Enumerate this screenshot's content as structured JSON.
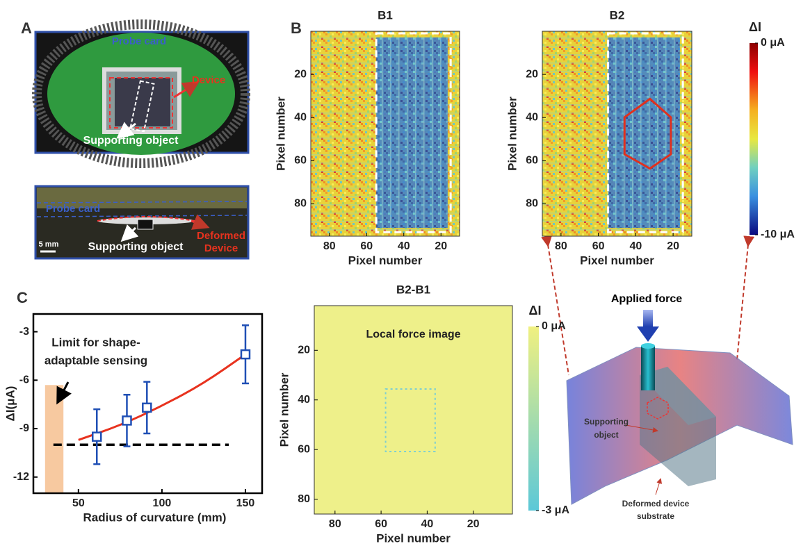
{
  "panels": {
    "labels": [
      "A",
      "B",
      "C"
    ]
  },
  "photo": {
    "top": {
      "labels": [
        "Probe card",
        "Device",
        "Supporting object"
      ]
    },
    "bottom": {
      "labels": [
        "Probe card",
        "5 mm",
        "Supporting object",
        "Deformed",
        "Device"
      ]
    }
  },
  "diagram": {
    "labels": [
      "Applied force",
      "Supporting",
      "object",
      "Deformed device",
      "substrate"
    ]
  },
  "chart_data": [
    {
      "type": "heatmap",
      "title": "B1",
      "xlabel": "Pixel number",
      "ylabel": "Pixel number",
      "xlim": [
        90,
        10
      ],
      "ylim": [
        0,
        95
      ],
      "xticks": [
        80,
        60,
        40,
        20
      ],
      "yticks": [
        20,
        40,
        60,
        80
      ],
      "colormap": "jet"
    },
    {
      "type": "heatmap",
      "title": "B2",
      "xlabel": "Pixel number",
      "ylabel": "Pixel number",
      "xlim": [
        90,
        10
      ],
      "ylim": [
        0,
        95
      ],
      "xticks": [
        80,
        60,
        40,
        20
      ],
      "yticks": [
        20,
        40,
        60,
        80
      ],
      "colormap": "jet",
      "colorbar": {
        "label": "ΔI",
        "clim": [
          -10,
          0
        ],
        "ticks": [
          {
            "value": 0,
            "label": "0 μA"
          },
          {
            "value": -10,
            "label": "-10 μA"
          }
        ]
      }
    },
    {
      "type": "heatmap",
      "title": "B2-B1",
      "annotation": "Local force image",
      "xlabel": "Pixel number",
      "ylabel": "Pixel number",
      "xlim": [
        89,
        3
      ],
      "ylim": [
        2,
        86
      ],
      "xticks": [
        80,
        60,
        40,
        20
      ],
      "yticks": [
        20,
        40,
        60,
        80
      ],
      "colormap": "teal-yellow",
      "colorbar": {
        "label": "ΔI",
        "clim": [
          -3,
          0
        ],
        "ticks": [
          {
            "value": 0,
            "label": "0 μA"
          },
          {
            "value": -3,
            "label": "-3 μA"
          }
        ]
      }
    },
    {
      "type": "scatter",
      "xlabel": "Radius of curvature (mm)",
      "ylabel": "ΔI(μA)",
      "xlim": [
        23,
        160
      ],
      "ylim": [
        -13,
        -1.9
      ],
      "xticks": [
        50,
        100,
        150
      ],
      "yticks": [
        -3,
        -6,
        -9,
        -12
      ],
      "annotation": [
        "Limit for shape-",
        "adaptable sensing"
      ],
      "points": {
        "x": [
          61,
          79,
          91,
          150
        ],
        "values": [
          -9.5,
          -8.5,
          -7.7,
          -4.4
        ],
        "errors": [
          1.7,
          1.6,
          1.6,
          1.8
        ],
        "color": "#1f4fb5"
      },
      "fit": {
        "x": [
          50,
          75,
          100,
          125,
          150
        ],
        "values": [
          -9.7,
          -8.8,
          -7.6,
          -6.2,
          -4.4
        ],
        "color": "#e8321e"
      },
      "reference": {
        "y": -10,
        "x": [
          35,
          140
        ]
      },
      "shade": {
        "x": [
          30,
          41
        ],
        "y": [
          -13,
          -6.3
        ],
        "color": "#f7c9a0"
      }
    }
  ]
}
